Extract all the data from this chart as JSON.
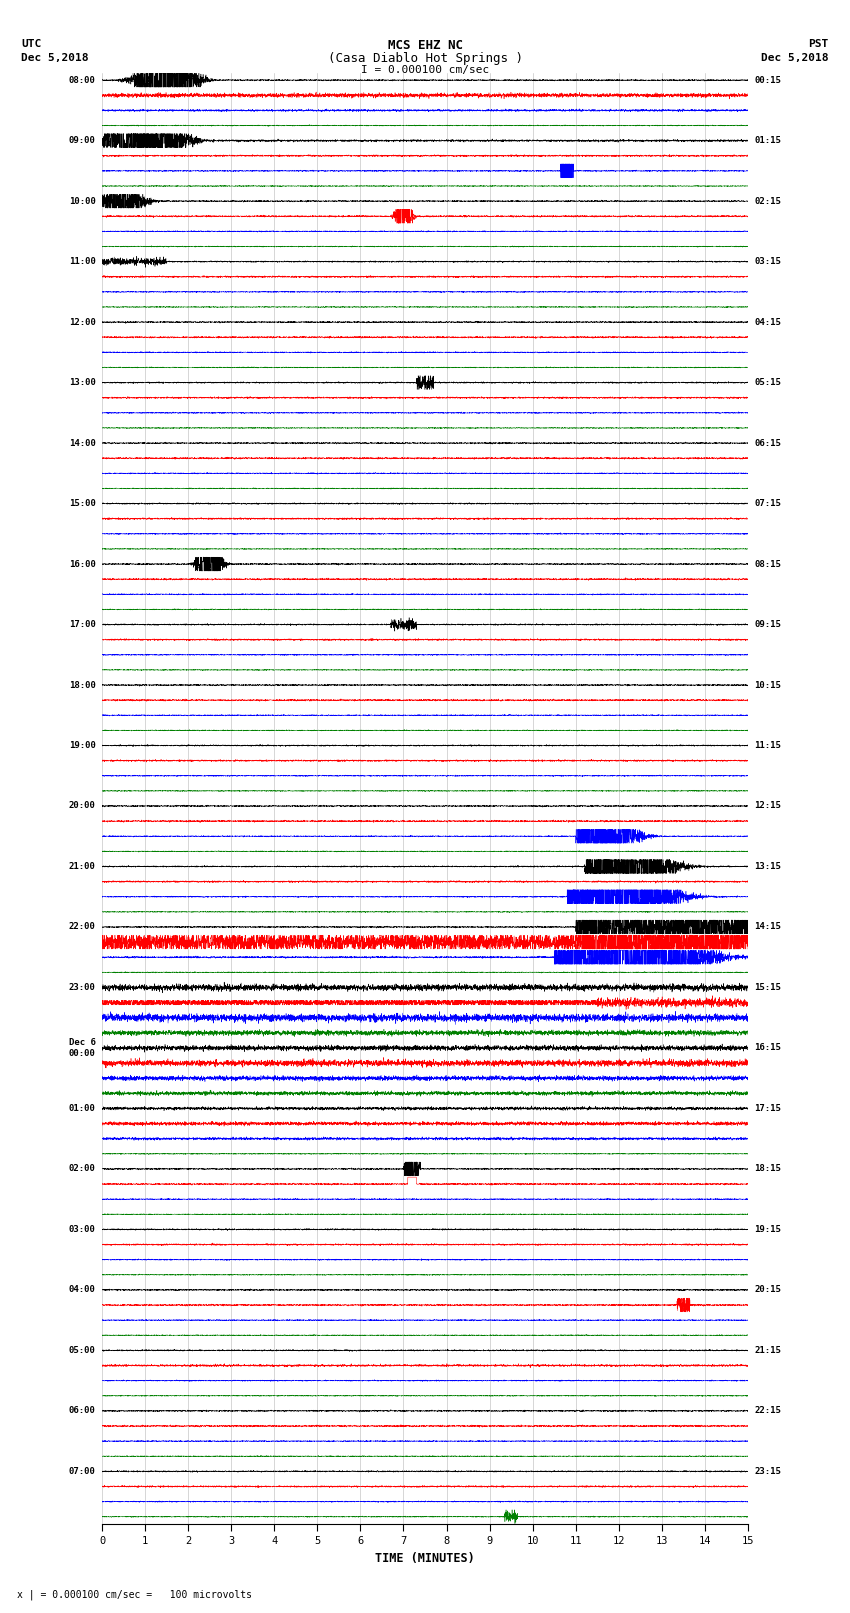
{
  "title_line1": "MCS EHZ NC",
  "title_line2": "(Casa Diablo Hot Springs )",
  "scale_text": "I = 0.000100 cm/sec",
  "bottom_text": "x | = 0.000100 cm/sec =   100 microvolts",
  "xlabel": "TIME (MINUTES)",
  "bg_color": "#ffffff",
  "trace_colors": [
    "black",
    "red",
    "blue",
    "green"
  ],
  "left_times_major": [
    "08:00",
    "09:00",
    "10:00",
    "11:00",
    "12:00",
    "13:00",
    "14:00",
    "15:00",
    "16:00",
    "17:00",
    "18:00",
    "19:00",
    "20:00",
    "21:00",
    "22:00",
    "23:00",
    "Dec 6\n00:00",
    "01:00",
    "02:00",
    "03:00",
    "04:00",
    "05:00",
    "06:00",
    "07:00"
  ],
  "right_times_major": [
    "00:15",
    "01:15",
    "02:15",
    "03:15",
    "04:15",
    "05:15",
    "06:15",
    "07:15",
    "08:15",
    "09:15",
    "10:15",
    "11:15",
    "12:15",
    "13:15",
    "14:15",
    "15:15",
    "16:15",
    "17:15",
    "18:15",
    "19:15",
    "20:15",
    "21:15",
    "22:15",
    "23:15"
  ],
  "n_hours": 24,
  "n_traces_per_hour": 4,
  "xmin": 0,
  "xmax": 15,
  "seed": 42
}
